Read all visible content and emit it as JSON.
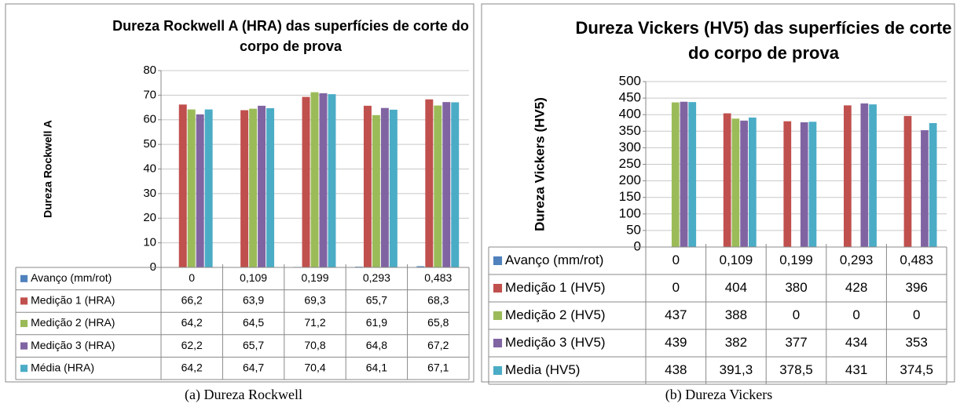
{
  "chart_data": [
    {
      "type": "bar",
      "title": "Dureza Rockwell A (HRA) das superfícies de corte do corpo de prova",
      "ylabel": "Dureza Rockwell A",
      "caption": "(a) Dureza Rockwell",
      "categories": [
        null,
        null,
        null,
        null,
        null
      ],
      "ylim": [
        0,
        80
      ],
      "yticks": [
        0,
        10,
        20,
        30,
        40,
        50,
        60,
        70,
        80
      ],
      "grid": true,
      "series": [
        {
          "name": "Avanço (mm/rot)",
          "color": "#4f81bd",
          "values": [
            0,
            0.109,
            0.199,
            0.293,
            0.483
          ],
          "value_labels": [
            "0",
            "0,109",
            "0,199",
            "0,293",
            "0,483"
          ]
        },
        {
          "name": "Medição 1 (HRA)",
          "color": "#c0504d",
          "values": [
            66.2,
            63.9,
            69.3,
            65.7,
            68.3
          ],
          "value_labels": [
            "66,2",
            "63,9",
            "69,3",
            "65,7",
            "68,3"
          ]
        },
        {
          "name": "Medição 2 (HRA)",
          "color": "#9bbb59",
          "values": [
            64.2,
            64.5,
            71.2,
            61.9,
            65.8
          ],
          "value_labels": [
            "64,2",
            "64,5",
            "71,2",
            "61,9",
            "65,8"
          ]
        },
        {
          "name": "Medição 3 (HRA)",
          "color": "#8064a2",
          "values": [
            62.2,
            65.7,
            70.8,
            64.8,
            67.2
          ],
          "value_labels": [
            "62,2",
            "65,7",
            "70,8",
            "64,8",
            "67,2"
          ]
        },
        {
          "name": "Média (HRA)",
          "color": "#4bacc6",
          "values": [
            64.2,
            64.7,
            70.4,
            64.1,
            67.1
          ],
          "value_labels": [
            "64,2",
            "64,7",
            "70,4",
            "64,1",
            "67,1"
          ]
        }
      ]
    },
    {
      "type": "bar",
      "title": "Dureza Vickers (HV5) das superfícies de corte do corpo de prova",
      "ylabel": "Dureza Vickers (HV5)",
      "caption": "(b) Dureza Vickers",
      "categories": [
        null,
        null,
        null,
        null,
        null
      ],
      "ylim": [
        0,
        500
      ],
      "yticks": [
        0,
        50,
        100,
        150,
        200,
        250,
        300,
        350,
        400,
        450,
        500
      ],
      "grid": true,
      "series": [
        {
          "name": "Avanço (mm/rot)",
          "color": "#4f81bd",
          "values": [
            0,
            0.109,
            0.199,
            0.293,
            0.483
          ],
          "value_labels": [
            "0",
            "0,109",
            "0,199",
            "0,293",
            "0,483"
          ]
        },
        {
          "name": "Medição 1 (HV5)",
          "color": "#c0504d",
          "values": [
            0,
            404,
            380,
            428,
            396
          ]
        },
        {
          "name": "Medição 2 (HV5)",
          "color": "#9bbb59",
          "values": [
            437,
            388,
            0,
            0,
            0
          ]
        },
        {
          "name": "Medição 3 (HV5)",
          "color": "#8064a2",
          "values": [
            439,
            382,
            377,
            434,
            353
          ]
        },
        {
          "name": "Media (HV5)",
          "color": "#4bacc6",
          "values": [
            438,
            391.3,
            378.5,
            431,
            374.5
          ],
          "value_labels": [
            "438",
            "391,3",
            "378,5",
            "431",
            "374,5"
          ]
        }
      ]
    }
  ]
}
